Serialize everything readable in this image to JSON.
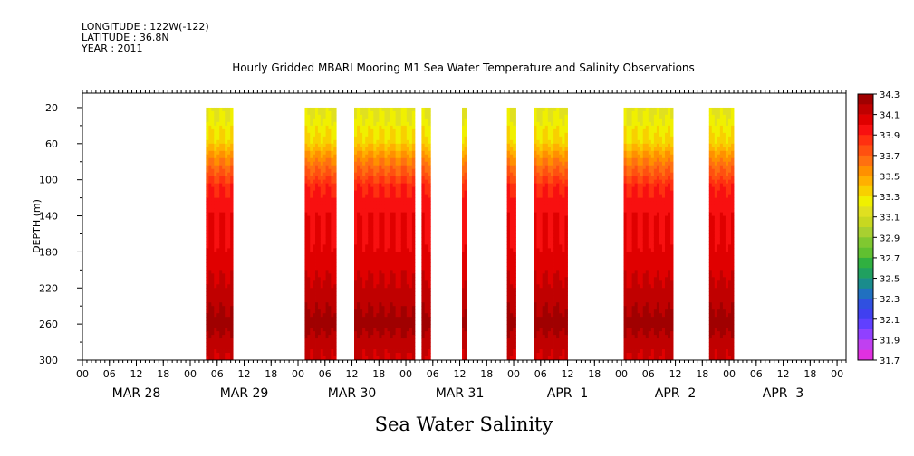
{
  "header": {
    "longitude": "LONGITUDE : 122W(-122)",
    "latitude": "LATITUDE : 36.8N",
    "year": "YEAR : 2011"
  },
  "title": "Hourly Gridded MBARI Mooring M1 Sea Water Temperature and Salinity Observations",
  "variable_title": "Sea Water Salinity",
  "chart_data": {
    "type": "heatmap",
    "title": "Hourly Gridded MBARI Mooring M1 Sea Water Temperature and Salinity Observations",
    "xlabel": "",
    "ylabel": "DEPTH (m)",
    "x_unit": "hours since 2011-03-28 00:00",
    "xlim": [
      0,
      170
    ],
    "ylim": [
      300,
      0
    ],
    "y_inverted": true,
    "y_ticks": [
      20,
      60,
      100,
      140,
      180,
      220,
      260,
      300
    ],
    "x_tick_labels": [
      "00",
      "06",
      "12",
      "18",
      "00",
      "06",
      "12",
      "18",
      "00",
      "06",
      "12",
      "18",
      "00",
      "06",
      "12",
      "18",
      "00",
      "06",
      "12",
      "18",
      "00",
      "06",
      "12",
      "18",
      "00",
      "06",
      "12",
      "18",
      "00"
    ],
    "day_labels": [
      "MAR 28",
      "MAR 29",
      "MAR 30",
      "MAR 31",
      "APR  1",
      "APR  2",
      "APR  3"
    ],
    "colorbar": {
      "levels": [
        31.7,
        31.8,
        31.9,
        32.0,
        32.1,
        32.2,
        32.3,
        32.4,
        32.5,
        32.6,
        32.7,
        32.8,
        32.9,
        33.0,
        33.1,
        33.2,
        33.3,
        33.4,
        33.5,
        33.6,
        33.7,
        33.8,
        33.9,
        34.0,
        34.1,
        34.2,
        34.3
      ],
      "labels": [
        "34.3",
        "34.1",
        "33.9",
        "33.7",
        "33.5",
        "33.3",
        "33.1",
        "32.9",
        "32.7",
        "32.5",
        "32.3",
        "32.1",
        "31.9",
        "31.7"
      ],
      "colors": [
        "#e030e0",
        "#c040f0",
        "#9040ff",
        "#6040ff",
        "#4040f0",
        "#3050e0",
        "#2070c0",
        "#1a8c8c",
        "#20a060",
        "#30b040",
        "#60c030",
        "#80c830",
        "#a8d030",
        "#c8d820",
        "#e0e020",
        "#f0f000",
        "#f8d000",
        "#ffb000",
        "#ff9000",
        "#ff7010",
        "#ff5010",
        "#ff3010",
        "#f81010",
        "#e00000",
        "#c00000",
        "#a00000"
      ]
    },
    "data_segments": [
      {
        "start_hour": 27.5,
        "end_hour": 33.5
      },
      {
        "start_hour": 49.5,
        "end_hour": 56.5
      },
      {
        "start_hour": 60.5,
        "end_hour": 74.0
      },
      {
        "start_hour": 75.5,
        "end_hour": 77.5
      },
      {
        "start_hour": 84.5,
        "end_hour": 85.5
      },
      {
        "start_hour": 94.5,
        "end_hour": 96.5
      },
      {
        "start_hour": 100.5,
        "end_hour": 108.0
      },
      {
        "start_hour": 120.5,
        "end_hour": 131.5
      },
      {
        "start_hour": 139.5,
        "end_hour": 145.0
      }
    ],
    "profile": {
      "depth": [
        20,
        40,
        60,
        70,
        80,
        90,
        100,
        110,
        130,
        140,
        170,
        210,
        230,
        260,
        280,
        300
      ],
      "salinity": [
        33.15,
        33.25,
        33.35,
        33.5,
        33.6,
        33.7,
        33.8,
        33.9,
        33.95,
        34.0,
        34.0,
        34.1,
        34.15,
        34.25,
        34.15,
        34.1
      ]
    }
  }
}
